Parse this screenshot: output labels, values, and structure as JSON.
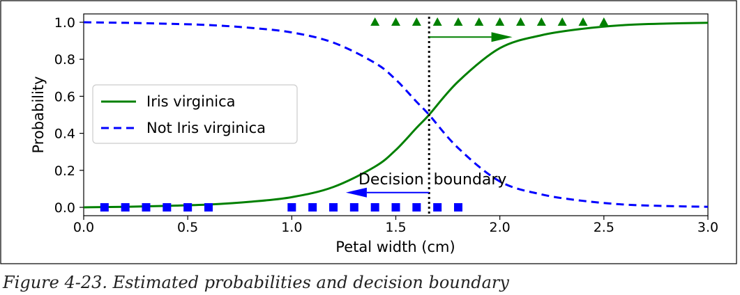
{
  "chart_data": {
    "type": "line",
    "xlabel": "Petal width (cm)",
    "ylabel": "Probability",
    "xlim": [
      0.0,
      3.0
    ],
    "ylim": [
      0.0,
      1.0
    ],
    "xticks": [
      "0.0",
      "0.5",
      "1.0",
      "1.5",
      "2.0",
      "2.5",
      "3.0"
    ],
    "xtick_values": [
      0.0,
      0.5,
      1.0,
      1.5,
      2.0,
      2.5,
      3.0
    ],
    "yticks": [
      "0.0",
      "0.2",
      "0.4",
      "0.6",
      "0.8",
      "1.0"
    ],
    "ytick_values": [
      0.0,
      0.2,
      0.4,
      0.6,
      0.8,
      1.0
    ],
    "legend_position": "center-left",
    "series": [
      {
        "name": "Iris virginica",
        "style": "solid",
        "color": "#008000",
        "x": [
          0.0,
          0.2,
          0.4,
          0.6,
          0.8,
          1.0,
          1.2,
          1.4,
          1.5,
          1.6,
          1.66,
          1.8,
          2.0,
          2.2,
          2.4,
          2.6,
          2.8,
          3.0
        ],
        "values": [
          0.0,
          0.003,
          0.008,
          0.015,
          0.03,
          0.055,
          0.11,
          0.22,
          0.31,
          0.43,
          0.5,
          0.68,
          0.86,
          0.93,
          0.965,
          0.985,
          0.993,
          0.997
        ]
      },
      {
        "name": "Not Iris virginica",
        "style": "dashed",
        "color": "#0000ff",
        "x": [
          0.0,
          0.2,
          0.4,
          0.6,
          0.8,
          1.0,
          1.2,
          1.4,
          1.5,
          1.6,
          1.66,
          1.8,
          2.0,
          2.2,
          2.4,
          2.6,
          2.8,
          3.0
        ],
        "values": [
          1.0,
          0.997,
          0.992,
          0.985,
          0.97,
          0.945,
          0.89,
          0.78,
          0.69,
          0.57,
          0.5,
          0.32,
          0.14,
          0.07,
          0.035,
          0.015,
          0.007,
          0.003
        ]
      }
    ],
    "markers": [
      {
        "name": "virginica samples",
        "shape": "triangle",
        "color": "#008000",
        "y": 1.0,
        "x": [
          1.4,
          1.5,
          1.6,
          1.7,
          1.8,
          1.9,
          2.0,
          2.1,
          2.2,
          2.3,
          2.4,
          2.5
        ]
      },
      {
        "name": "non-virginica samples",
        "shape": "square",
        "color": "#0000ff",
        "y": 0.0,
        "x": [
          0.1,
          0.2,
          0.3,
          0.4,
          0.5,
          0.6,
          1.0,
          1.1,
          1.2,
          1.3,
          1.4,
          1.5,
          1.6,
          1.7,
          1.8
        ]
      }
    ],
    "decision_boundary": 1.66,
    "annotations": [
      {
        "text": "Decision  boundary",
        "x": 1.66,
        "y": 0.15
      },
      {
        "arrow": "right",
        "color": "#008000",
        "x_from": 1.66,
        "x_to": 2.06,
        "y": 0.92
      },
      {
        "arrow": "left",
        "color": "#0000ff",
        "x_from": 1.66,
        "x_to": 1.26,
        "y": 0.08
      }
    ]
  },
  "caption": "Figure 4-23. Estimated probabilities and decision boundary"
}
